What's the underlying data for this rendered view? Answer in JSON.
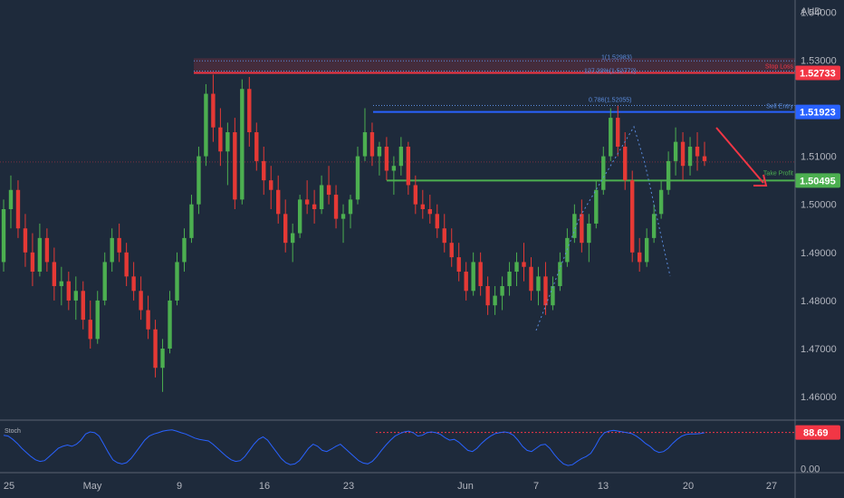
{
  "colors": {
    "background": "#1e2a3b",
    "up": "#4caf50",
    "down": "#e53935",
    "stop_loss": "#f23645",
    "entry": "#2962ff",
    "take_profit": "#4caf50",
    "fib": "#5b8cde",
    "stoch": "#2962ff",
    "stoch_level": "#f23645"
  },
  "chart_data": [
    {
      "type": "candlestick",
      "currency": "AUD",
      "y_ticks": [
        "1.54000",
        "1.53000",
        "1.51000",
        "1.50000",
        "1.49000",
        "1.48000",
        "1.47000",
        "1.46000"
      ],
      "ylim": [
        1.4555,
        1.5425
      ],
      "grid": false,
      "x_ticks": [
        "25",
        "May",
        "9",
        "16",
        "23",
        "Jun",
        "7",
        "13",
        "20",
        "27"
      ],
      "levels": [
        {
          "key": "stop_loss",
          "name": "Stop Loss",
          "value": 1.52733,
          "label": "1.52733"
        },
        {
          "key": "entry",
          "name": "Sell Entry",
          "value": 1.51923,
          "label": "1.51923"
        },
        {
          "key": "take_profit",
          "name": "Take Profit",
          "value": 1.50495,
          "label": "1.50495"
        }
      ],
      "fib_annotations": [
        {
          "text": "1(1.52983)",
          "value": 1.52983
        },
        {
          "text": "127.20%(1.52772)",
          "value": 1.52772
        },
        {
          "text": "0.786(1.52055)",
          "value": 1.52055
        }
      ],
      "candles_ohlc": [
        [
          1.488,
          1.501,
          1.486,
          1.499
        ],
        [
          1.499,
          1.506,
          1.495,
          1.503
        ],
        [
          1.503,
          1.505,
          1.493,
          1.495
        ],
        [
          1.495,
          1.498,
          1.487,
          1.49
        ],
        [
          1.49,
          1.494,
          1.483,
          1.486
        ],
        [
          1.486,
          1.496,
          1.485,
          1.493
        ],
        [
          1.493,
          1.495,
          1.486,
          1.488
        ],
        [
          1.488,
          1.491,
          1.48,
          1.483
        ],
        [
          1.483,
          1.487,
          1.479,
          1.484
        ],
        [
          1.484,
          1.486,
          1.478,
          1.48
        ],
        [
          1.48,
          1.485,
          1.476,
          1.482
        ],
        [
          1.482,
          1.484,
          1.474,
          1.476
        ],
        [
          1.476,
          1.48,
          1.47,
          1.472
        ],
        [
          1.472,
          1.482,
          1.471,
          1.48
        ],
        [
          1.48,
          1.49,
          1.479,
          1.488
        ],
        [
          1.488,
          1.495,
          1.486,
          1.493
        ],
        [
          1.493,
          1.496,
          1.488,
          1.49
        ],
        [
          1.49,
          1.492,
          1.483,
          1.485
        ],
        [
          1.485,
          1.488,
          1.48,
          1.482
        ],
        [
          1.482,
          1.485,
          1.476,
          1.478
        ],
        [
          1.478,
          1.481,
          1.472,
          1.474
        ],
        [
          1.474,
          1.476,
          1.464,
          1.466
        ],
        [
          1.466,
          1.472,
          1.461,
          1.47
        ],
        [
          1.47,
          1.482,
          1.469,
          1.48
        ],
        [
          1.48,
          1.49,
          1.479,
          1.488
        ],
        [
          1.488,
          1.495,
          1.486,
          1.493
        ],
        [
          1.493,
          1.502,
          1.492,
          1.5
        ],
        [
          1.5,
          1.512,
          1.498,
          1.51
        ],
        [
          1.51,
          1.525,
          1.508,
          1.523
        ],
        [
          1.523,
          1.527,
          1.513,
          1.516
        ],
        [
          1.516,
          1.52,
          1.508,
          1.511
        ],
        [
          1.511,
          1.517,
          1.504,
          1.515
        ],
        [
          1.515,
          1.518,
          1.499,
          1.501
        ],
        [
          1.501,
          1.526,
          1.5,
          1.524
        ],
        [
          1.524,
          1.5265,
          1.512,
          1.515
        ],
        [
          1.515,
          1.517,
          1.507,
          1.509
        ],
        [
          1.509,
          1.512,
          1.502,
          1.505
        ],
        [
          1.505,
          1.508,
          1.499,
          1.503
        ],
        [
          1.503,
          1.506,
          1.496,
          1.498
        ],
        [
          1.498,
          1.501,
          1.49,
          1.492
        ],
        [
          1.492,
          1.496,
          1.488,
          1.494
        ],
        [
          1.494,
          1.502,
          1.493,
          1.501
        ],
        [
          1.501,
          1.505,
          1.498,
          1.5
        ],
        [
          1.5,
          1.503,
          1.496,
          1.499
        ],
        [
          1.499,
          1.506,
          1.498,
          1.504
        ],
        [
          1.504,
          1.508,
          1.5,
          1.502
        ],
        [
          1.502,
          1.504,
          1.495,
          1.497
        ],
        [
          1.497,
          1.5,
          1.492,
          1.498
        ],
        [
          1.498,
          1.502,
          1.495,
          1.501
        ],
        [
          1.501,
          1.512,
          1.5,
          1.51
        ],
        [
          1.51,
          1.52,
          1.509,
          1.515
        ],
        [
          1.515,
          1.517,
          1.508,
          1.51
        ],
        [
          1.51,
          1.513,
          1.506,
          1.512
        ],
        [
          1.512,
          1.514,
          1.505,
          1.507
        ],
        [
          1.507,
          1.51,
          1.502,
          1.508
        ],
        [
          1.508,
          1.514,
          1.506,
          1.512
        ],
        [
          1.512,
          1.513,
          1.502,
          1.504
        ],
        [
          1.504,
          1.506,
          1.498,
          1.5
        ],
        [
          1.5,
          1.503,
          1.497,
          1.499
        ],
        [
          1.499,
          1.502,
          1.496,
          1.498
        ],
        [
          1.498,
          1.5,
          1.493,
          1.495
        ],
        [
          1.495,
          1.498,
          1.49,
          1.492
        ],
        [
          1.492,
          1.495,
          1.487,
          1.489
        ],
        [
          1.489,
          1.492,
          1.484,
          1.486
        ],
        [
          1.486,
          1.488,
          1.48,
          1.482
        ],
        [
          1.482,
          1.49,
          1.481,
          1.488
        ],
        [
          1.488,
          1.49,
          1.481,
          1.483
        ],
        [
          1.483,
          1.485,
          1.477,
          1.479
        ],
        [
          1.479,
          1.483,
          1.477,
          1.481
        ],
        [
          1.481,
          1.485,
          1.478,
          1.483
        ],
        [
          1.483,
          1.488,
          1.481,
          1.486
        ],
        [
          1.486,
          1.49,
          1.483,
          1.488
        ],
        [
          1.488,
          1.492,
          1.484,
          1.487
        ],
        [
          1.487,
          1.489,
          1.48,
          1.482
        ],
        [
          1.482,
          1.487,
          1.479,
          1.485
        ],
        [
          1.485,
          1.488,
          1.477,
          1.479
        ],
        [
          1.479,
          1.485,
          1.478,
          1.483
        ],
        [
          1.483,
          1.49,
          1.482,
          1.488
        ],
        [
          1.488,
          1.495,
          1.487,
          1.493
        ],
        [
          1.493,
          1.5,
          1.492,
          1.498
        ],
        [
          1.498,
          1.501,
          1.49,
          1.492
        ],
        [
          1.492,
          1.498,
          1.488,
          1.496
        ],
        [
          1.496,
          1.505,
          1.495,
          1.503
        ],
        [
          1.503,
          1.512,
          1.502,
          1.51
        ],
        [
          1.51,
          1.52,
          1.509,
          1.518
        ],
        [
          1.518,
          1.5205,
          1.51,
          1.512
        ],
        [
          1.512,
          1.515,
          1.503,
          1.505
        ],
        [
          1.505,
          1.507,
          1.488,
          1.49
        ],
        [
          1.49,
          1.493,
          1.486,
          1.488
        ],
        [
          1.488,
          1.495,
          1.487,
          1.493
        ],
        [
          1.493,
          1.5,
          1.492,
          1.498
        ],
        [
          1.498,
          1.505,
          1.497,
          1.503
        ],
        [
          1.503,
          1.511,
          1.502,
          1.509
        ],
        [
          1.509,
          1.516,
          1.506,
          1.513
        ],
        [
          1.513,
          1.515,
          1.505,
          1.508
        ],
        [
          1.508,
          1.514,
          1.506,
          1.512
        ],
        [
          1.512,
          1.515,
          1.507,
          1.51
        ],
        [
          1.51,
          1.513,
          1.508,
          1.509
        ]
      ]
    },
    {
      "type": "line",
      "title": "Stoch",
      "y_ticks": [
        "0.00"
      ],
      "level": {
        "value": 88.69,
        "label": "88.69"
      },
      "ylim": [
        -5,
        110
      ],
      "values": [
        82,
        80,
        72,
        62,
        50,
        40,
        30,
        22,
        18,
        20,
        30,
        40,
        50,
        55,
        58,
        55,
        60,
        70,
        85,
        90,
        88,
        80,
        60,
        40,
        22,
        15,
        12,
        15,
        25,
        40,
        55,
        70,
        80,
        85,
        88,
        92,
        94,
        95,
        92,
        88,
        85,
        80,
        75,
        72,
        70,
        68,
        60,
        50,
        40,
        30,
        22,
        18,
        20,
        30,
        45,
        60,
        72,
        78,
        70,
        55,
        40,
        25,
        15,
        10,
        12,
        20,
        35,
        50,
        60,
        55,
        45,
        42,
        48,
        55,
        60,
        50,
        40,
        30,
        20,
        14,
        12,
        18,
        30,
        45,
        58,
        70,
        80,
        86,
        90,
        92,
        88,
        80,
        82,
        88,
        90,
        88,
        84,
        76,
        70,
        72,
        65,
        55,
        45,
        42,
        50,
        62,
        72,
        80,
        86,
        88,
        90,
        88,
        82,
        70,
        55,
        45,
        42,
        50,
        58,
        60,
        50,
        35,
        22,
        12,
        8,
        10,
        18,
        25,
        30,
        38,
        55,
        75,
        88,
        92,
        94,
        92,
        90,
        88,
        86,
        80,
        72,
        62,
        55,
        45,
        40,
        42,
        50,
        62,
        72,
        80,
        84,
        85,
        85,
        86,
        88
      ]
    }
  ]
}
